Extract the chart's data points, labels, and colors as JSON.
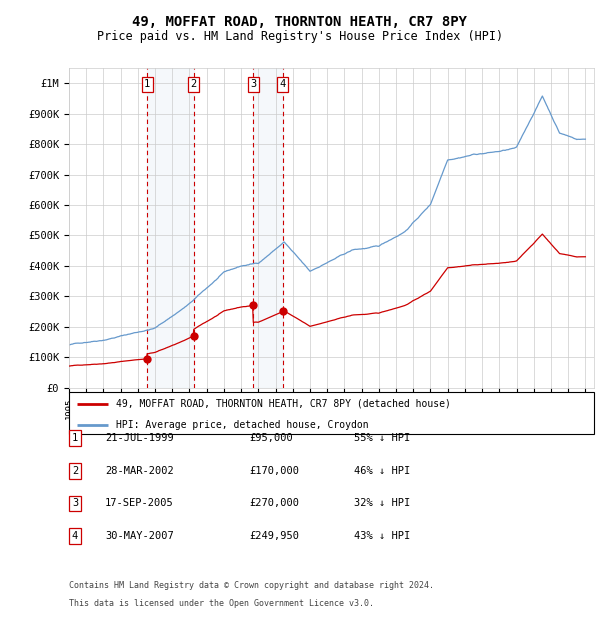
{
  "title": "49, MOFFAT ROAD, THORNTON HEATH, CR7 8PY",
  "subtitle": "Price paid vs. HM Land Registry's House Price Index (HPI)",
  "legend_line1": "49, MOFFAT ROAD, THORNTON HEATH, CR7 8PY (detached house)",
  "legend_line2": "HPI: Average price, detached house, Croydon",
  "footer_line1": "Contains HM Land Registry data © Crown copyright and database right 2024.",
  "footer_line2": "This data is licensed under the Open Government Licence v3.0.",
  "sales": [
    {
      "num": 1,
      "date": "21-JUL-1999",
      "price": 95000,
      "pct": "55%",
      "dir": "↓"
    },
    {
      "num": 2,
      "date": "28-MAR-2002",
      "price": 170000,
      "pct": "46%",
      "dir": "↓"
    },
    {
      "num": 3,
      "date": "17-SEP-2005",
      "price": 270000,
      "pct": "32%",
      "dir": "↓"
    },
    {
      "num": 4,
      "date": "30-MAY-2007",
      "price": 249950,
      "pct": "43%",
      "dir": "↓"
    }
  ],
  "sale_dates_decimal": [
    1999.55,
    2002.24,
    2005.71,
    2007.41
  ],
  "sale_prices": [
    95000,
    170000,
    270000,
    249950
  ],
  "hpi_color": "#6699cc",
  "price_color": "#cc0000",
  "vline_color": "#cc0000",
  "shade_color": "#ccdded",
  "grid_color": "#cccccc",
  "background_color": "#ffffff",
  "ylim": [
    0,
    1050000
  ],
  "xlim_start": 1995.0,
  "xlim_end": 2025.5,
  "yticks": [
    0,
    100000,
    200000,
    300000,
    400000,
    500000,
    600000,
    700000,
    800000,
    900000,
    1000000
  ],
  "ytick_labels": [
    "£0",
    "£100K",
    "£200K",
    "£300K",
    "£400K",
    "£500K",
    "£600K",
    "£700K",
    "£800K",
    "£900K",
    "£1M"
  ]
}
